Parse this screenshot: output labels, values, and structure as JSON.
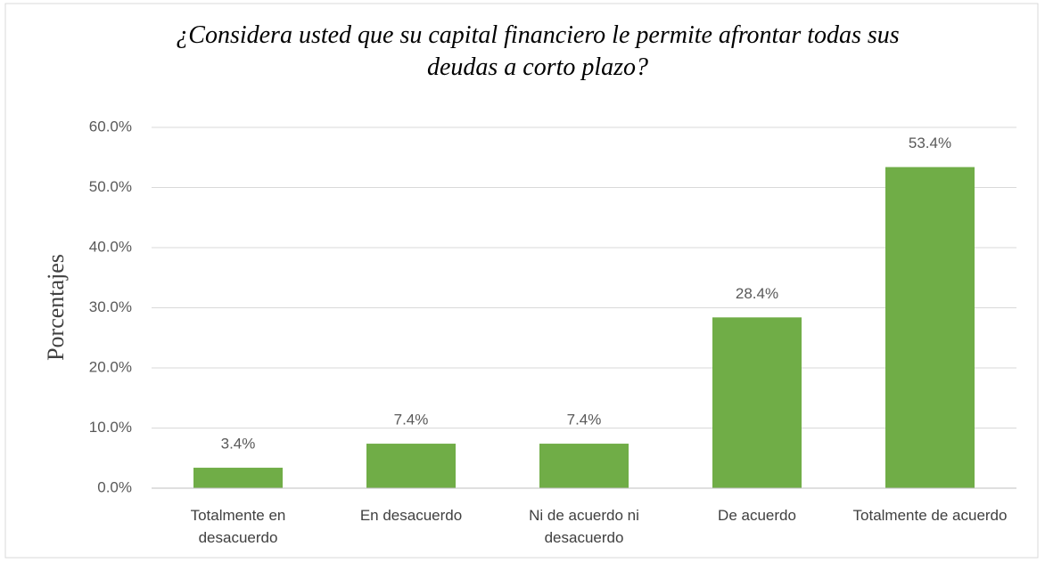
{
  "chart_data": {
    "type": "bar",
    "title": "¿Considera usted que su capital financiero le permite afrontar todas sus deudas a corto plazo?",
    "y_label": "Porcentajes",
    "categories": [
      "Totalmente en desacuerdo",
      "En desacuerdo",
      "Ni de acuerdo ni desacuerdo",
      "De acuerdo",
      "Totalmente de acuerdo"
    ],
    "values": [
      3.4,
      7.4,
      7.4,
      28.4,
      53.4
    ],
    "value_labels": [
      "3.4%",
      "7.4%",
      "7.4%",
      "28.4%",
      "53.4%"
    ],
    "color": "#70ad47",
    "ylim": [
      0,
      60
    ],
    "yticks": [
      {
        "value": 0,
        "label": "0.0%"
      },
      {
        "value": 10,
        "label": "10.0%"
      },
      {
        "value": 20,
        "label": "20.0%"
      },
      {
        "value": 30,
        "label": "30.0%"
      },
      {
        "value": 40,
        "label": "40.0%"
      },
      {
        "value": 50,
        "label": "50.0%"
      },
      {
        "value": 60,
        "label": "60.0%"
      }
    ],
    "grid": true
  }
}
